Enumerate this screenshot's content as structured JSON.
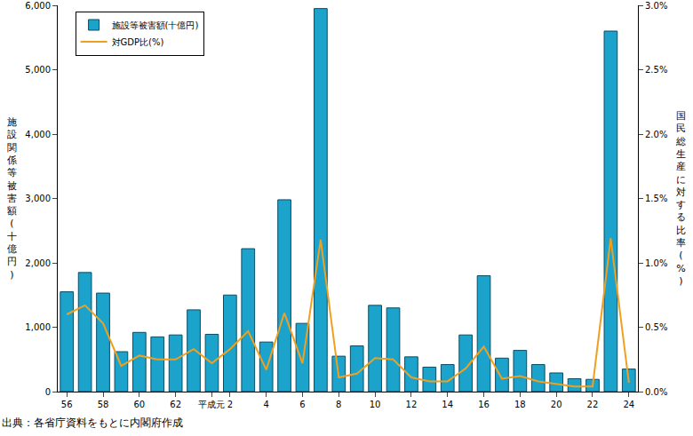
{
  "chart_data": {
    "type": "bar",
    "categories": [
      "56",
      null,
      "58",
      null,
      "60",
      null,
      "62",
      null,
      "平成元",
      "2",
      null,
      "4",
      null,
      "6",
      null,
      "8",
      null,
      "10",
      null,
      "12",
      null,
      "14",
      null,
      "16",
      null,
      "18",
      null,
      "20",
      null,
      "22",
      null,
      "24"
    ],
    "series": [
      {
        "name": "施設等被害額(十億円)",
        "type": "bar",
        "color": "#1ba3cc",
        "values": [
          1550,
          1850,
          1530,
          620,
          920,
          850,
          880,
          1270,
          890,
          1500,
          2220,
          770,
          2980,
          1060,
          5950,
          550,
          710,
          1340,
          1300,
          540,
          380,
          420,
          880,
          1800,
          520,
          640,
          420,
          290,
          200,
          190,
          5600,
          350
        ]
      },
      {
        "name": "対GDP比(%)",
        "type": "line",
        "color": "#f0a020",
        "axis": "y2",
        "values": [
          0.6,
          0.67,
          0.53,
          0.2,
          0.28,
          0.25,
          0.25,
          0.33,
          0.22,
          0.33,
          0.47,
          0.17,
          0.61,
          0.22,
          1.18,
          0.11,
          0.14,
          0.26,
          0.25,
          0.11,
          0.08,
          0.08,
          0.18,
          0.35,
          0.1,
          0.12,
          0.08,
          0.06,
          0.04,
          0.04,
          1.19,
          0.07
        ]
      }
    ],
    "y_label": "施設関係等被害額(十億円)",
    "y2_label": "国民総生産に対する比率(%)",
    "ylim": [
      0,
      6000
    ],
    "yticks": [
      0,
      {
        "value": 1000,
        "label": "1,000"
      },
      {
        "value": 2000,
        "label": "2,000"
      },
      {
        "value": 3000,
        "label": "3,000"
      },
      {
        "value": 4000,
        "label": "4,000"
      },
      {
        "value": 5000,
        "label": "5,000"
      },
      {
        "value": 6000,
        "label": "6,000"
      }
    ],
    "y2lim": [
      0,
      3
    ],
    "y2ticks": [
      {
        "value": 0,
        "label": "0.0%"
      },
      {
        "value": 0.5,
        "label": "0.5%"
      },
      {
        "value": 1,
        "label": "1.0%"
      },
      {
        "value": 1.5,
        "label": "1.5%"
      },
      {
        "value": 2,
        "label": "2.0%"
      },
      {
        "value": 2.5,
        "label": "2.5%"
      },
      {
        "value": 3,
        "label": "3.0%"
      }
    ],
    "legend": "top-left",
    "grid": false,
    "annotations": [
      "出典：各省庁資料をもとに内閣府作成"
    ]
  }
}
